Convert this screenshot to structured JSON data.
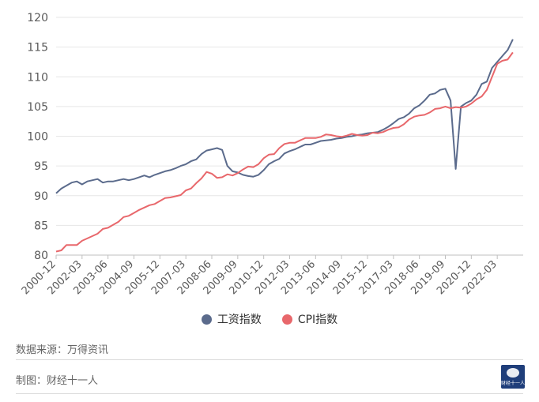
{
  "chart_data": {
    "type": "line",
    "title": "",
    "xlabel": "",
    "ylabel": "",
    "ylim": [
      80,
      120
    ],
    "yticks": [
      80,
      85,
      90,
      95,
      100,
      105,
      110,
      115,
      120
    ],
    "grid": "horizontal",
    "legend_position": "bottom-center",
    "x_start": "2000-12",
    "x_end": "2023-06",
    "xticks": [
      "2000-12",
      "2002-03",
      "2003-06",
      "2004-09",
      "2005-12",
      "2007-03",
      "2008-06",
      "2009-09",
      "2010-12",
      "2012-03",
      "2013-06",
      "2014-09",
      "2015-12",
      "2017-03",
      "2018-06",
      "2019-09",
      "2020-12",
      "2022-03"
    ],
    "series": [
      {
        "name": "工资指数",
        "color": "#5b6b8c",
        "points": [
          [
            "2000-12",
            90.4
          ],
          [
            "2001-03",
            91.2
          ],
          [
            "2001-06",
            91.7
          ],
          [
            "2001-09",
            92.2
          ],
          [
            "2001-12",
            92.4
          ],
          [
            "2002-03",
            91.9
          ],
          [
            "2002-06",
            92.4
          ],
          [
            "2002-09",
            92.6
          ],
          [
            "2002-12",
            92.8
          ],
          [
            "2003-03",
            92.2
          ],
          [
            "2003-06",
            92.4
          ],
          [
            "2003-09",
            92.4
          ],
          [
            "2003-12",
            92.6
          ],
          [
            "2004-03",
            92.8
          ],
          [
            "2004-06",
            92.6
          ],
          [
            "2004-09",
            92.8
          ],
          [
            "2004-12",
            93.1
          ],
          [
            "2005-03",
            93.4
          ],
          [
            "2005-06",
            93.1
          ],
          [
            "2005-09",
            93.5
          ],
          [
            "2005-12",
            93.8
          ],
          [
            "2006-03",
            94.1
          ],
          [
            "2006-06",
            94.3
          ],
          [
            "2006-09",
            94.6
          ],
          [
            "2006-12",
            95.0
          ],
          [
            "2007-03",
            95.3
          ],
          [
            "2007-06",
            95.8
          ],
          [
            "2007-09",
            96.1
          ],
          [
            "2007-12",
            97.0
          ],
          [
            "2008-03",
            97.6
          ],
          [
            "2008-06",
            97.8
          ],
          [
            "2008-09",
            98.0
          ],
          [
            "2008-12",
            97.7
          ],
          [
            "2009-03",
            95.0
          ],
          [
            "2009-06",
            94.1
          ],
          [
            "2009-09",
            93.9
          ],
          [
            "2009-12",
            93.5
          ],
          [
            "2010-03",
            93.3
          ],
          [
            "2010-06",
            93.2
          ],
          [
            "2010-09",
            93.5
          ],
          [
            "2010-12",
            94.3
          ],
          [
            "2011-03",
            95.3
          ],
          [
            "2011-06",
            95.8
          ],
          [
            "2011-09",
            96.2
          ],
          [
            "2011-12",
            97.1
          ],
          [
            "2012-03",
            97.5
          ],
          [
            "2012-06",
            97.8
          ],
          [
            "2012-09",
            98.2
          ],
          [
            "2012-12",
            98.6
          ],
          [
            "2013-03",
            98.6
          ],
          [
            "2013-06",
            98.9
          ],
          [
            "2013-09",
            99.2
          ],
          [
            "2013-12",
            99.3
          ],
          [
            "2014-03",
            99.4
          ],
          [
            "2014-06",
            99.6
          ],
          [
            "2014-09",
            99.7
          ],
          [
            "2014-12",
            99.9
          ],
          [
            "2015-03",
            100.0
          ],
          [
            "2015-06",
            100.2
          ],
          [
            "2015-09",
            100.3
          ],
          [
            "2015-12",
            100.5
          ],
          [
            "2016-03",
            100.6
          ],
          [
            "2016-06",
            100.7
          ],
          [
            "2016-09",
            101.1
          ],
          [
            "2016-12",
            101.6
          ],
          [
            "2017-03",
            102.2
          ],
          [
            "2017-06",
            102.9
          ],
          [
            "2017-09",
            103.2
          ],
          [
            "2017-12",
            103.8
          ],
          [
            "2018-03",
            104.7
          ],
          [
            "2018-06",
            105.2
          ],
          [
            "2018-09",
            106.0
          ],
          [
            "2018-12",
            107.0
          ],
          [
            "2019-03",
            107.2
          ],
          [
            "2019-06",
            107.8
          ],
          [
            "2019-09",
            108.0
          ],
          [
            "2019-12",
            106.0
          ],
          [
            "2020-03",
            94.5
          ],
          [
            "2020-06",
            105.0
          ],
          [
            "2020-09",
            105.6
          ],
          [
            "2020-12",
            106.0
          ],
          [
            "2021-03",
            107.0
          ],
          [
            "2021-06",
            108.8
          ],
          [
            "2021-09",
            109.2
          ],
          [
            "2021-12",
            111.5
          ],
          [
            "2022-03",
            112.5
          ],
          [
            "2022-06",
            113.5
          ],
          [
            "2022-09",
            114.5
          ],
          [
            "2022-12",
            116.3
          ]
        ]
      },
      {
        "name": "CPI指数",
        "color": "#e8676b",
        "points": [
          [
            "2000-12",
            80.6
          ],
          [
            "2001-03",
            80.8
          ],
          [
            "2001-06",
            81.7
          ],
          [
            "2001-09",
            81.7
          ],
          [
            "2001-12",
            81.7
          ],
          [
            "2002-03",
            82.4
          ],
          [
            "2002-06",
            82.8
          ],
          [
            "2002-09",
            83.2
          ],
          [
            "2002-12",
            83.6
          ],
          [
            "2003-03",
            84.4
          ],
          [
            "2003-06",
            84.6
          ],
          [
            "2003-09",
            85.1
          ],
          [
            "2003-12",
            85.6
          ],
          [
            "2004-03",
            86.4
          ],
          [
            "2004-06",
            86.6
          ],
          [
            "2004-09",
            87.1
          ],
          [
            "2004-12",
            87.6
          ],
          [
            "2005-03",
            88.0
          ],
          [
            "2005-06",
            88.4
          ],
          [
            "2005-09",
            88.6
          ],
          [
            "2005-12",
            89.1
          ],
          [
            "2006-03",
            89.6
          ],
          [
            "2006-06",
            89.7
          ],
          [
            "2006-09",
            89.9
          ],
          [
            "2006-12",
            90.1
          ],
          [
            "2007-03",
            90.9
          ],
          [
            "2007-06",
            91.2
          ],
          [
            "2007-09",
            92.1
          ],
          [
            "2007-12",
            92.9
          ],
          [
            "2008-03",
            94.0
          ],
          [
            "2008-06",
            93.7
          ],
          [
            "2008-09",
            93.0
          ],
          [
            "2008-12",
            93.1
          ],
          [
            "2009-03",
            93.6
          ],
          [
            "2009-06",
            93.4
          ],
          [
            "2009-09",
            93.8
          ],
          [
            "2009-12",
            94.4
          ],
          [
            "2010-03",
            94.9
          ],
          [
            "2010-06",
            94.8
          ],
          [
            "2010-09",
            95.3
          ],
          [
            "2010-12",
            96.3
          ],
          [
            "2011-03",
            96.9
          ],
          [
            "2011-06",
            97.0
          ],
          [
            "2011-09",
            98.0
          ],
          [
            "2011-12",
            98.7
          ],
          [
            "2012-03",
            98.9
          ],
          [
            "2012-06",
            98.9
          ],
          [
            "2012-09",
            99.3
          ],
          [
            "2012-12",
            99.7
          ],
          [
            "2013-03",
            99.7
          ],
          [
            "2013-06",
            99.7
          ],
          [
            "2013-09",
            99.9
          ],
          [
            "2013-12",
            100.3
          ],
          [
            "2014-03",
            100.2
          ],
          [
            "2014-06",
            100.0
          ],
          [
            "2014-09",
            99.9
          ],
          [
            "2014-12",
            100.1
          ],
          [
            "2015-03",
            100.4
          ],
          [
            "2015-06",
            100.2
          ],
          [
            "2015-09",
            100.1
          ],
          [
            "2015-12",
            100.2
          ],
          [
            "2016-03",
            100.6
          ],
          [
            "2016-06",
            100.5
          ],
          [
            "2016-09",
            100.7
          ],
          [
            "2016-12",
            101.1
          ],
          [
            "2017-03",
            101.4
          ],
          [
            "2017-06",
            101.5
          ],
          [
            "2017-09",
            102.0
          ],
          [
            "2017-12",
            102.8
          ],
          [
            "2018-03",
            103.3
          ],
          [
            "2018-06",
            103.5
          ],
          [
            "2018-09",
            103.6
          ],
          [
            "2018-12",
            104.0
          ],
          [
            "2019-03",
            104.6
          ],
          [
            "2019-06",
            104.7
          ],
          [
            "2019-09",
            105.0
          ],
          [
            "2019-12",
            104.7
          ],
          [
            "2020-03",
            104.9
          ],
          [
            "2020-06",
            104.8
          ],
          [
            "2020-09",
            105.0
          ],
          [
            "2020-12",
            105.5
          ],
          [
            "2021-03",
            106.2
          ],
          [
            "2021-06",
            106.7
          ],
          [
            "2021-09",
            107.8
          ],
          [
            "2021-12",
            110.0
          ],
          [
            "2022-03",
            112.2
          ],
          [
            "2022-06",
            112.7
          ],
          [
            "2022-09",
            112.9
          ],
          [
            "2022-12",
            114.1
          ]
        ]
      }
    ]
  },
  "footer": {
    "source": "数据来源：万得资讯",
    "made_by": "制图：财经十一人"
  },
  "logo": {
    "text": "财经十一人"
  }
}
